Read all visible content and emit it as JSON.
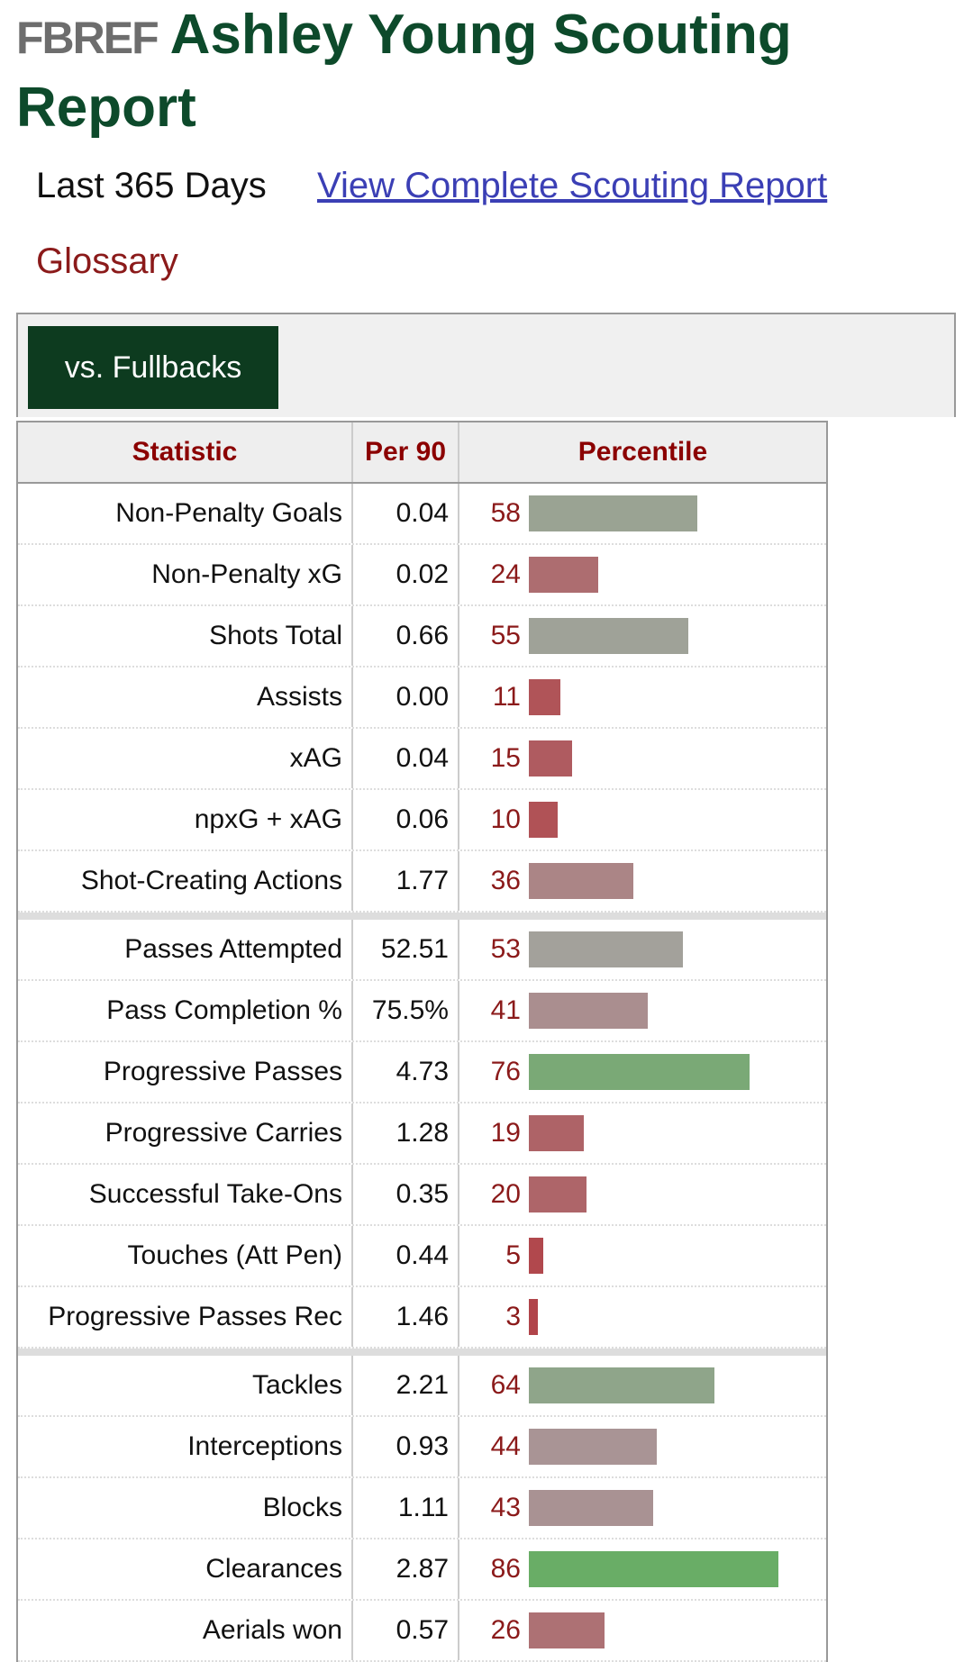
{
  "header": {
    "logo": "FBREF",
    "title": "Ashley Young Scouting Report"
  },
  "period": "Last 365 Days",
  "link": "View Complete Scouting Report",
  "glossary": "Glossary",
  "tab": "vs. Fullbacks",
  "table": {
    "columns": [
      "Statistic",
      "Per 90",
      "Percentile"
    ],
    "groups": [
      [
        {
          "stat": "Non-Penalty Goals",
          "per90": "0.04",
          "percentile": 58
        },
        {
          "stat": "Non-Penalty xG",
          "per90": "0.02",
          "percentile": 24
        },
        {
          "stat": "Shots Total",
          "per90": "0.66",
          "percentile": 55
        },
        {
          "stat": "Assists",
          "per90": "0.00",
          "percentile": 11
        },
        {
          "stat": "xAG",
          "per90": "0.04",
          "percentile": 15
        },
        {
          "stat": "npxG + xAG",
          "per90": "0.06",
          "percentile": 10
        },
        {
          "stat": "Shot-Creating Actions",
          "per90": "1.77",
          "percentile": 36
        }
      ],
      [
        {
          "stat": "Passes Attempted",
          "per90": "52.51",
          "percentile": 53
        },
        {
          "stat": "Pass Completion %",
          "per90": "75.5%",
          "percentile": 41
        },
        {
          "stat": "Progressive Passes",
          "per90": "4.73",
          "percentile": 76
        },
        {
          "stat": "Progressive Carries",
          "per90": "1.28",
          "percentile": 19
        },
        {
          "stat": "Successful Take-Ons",
          "per90": "0.35",
          "percentile": 20
        },
        {
          "stat": "Touches (Att Pen)",
          "per90": "0.44",
          "percentile": 5
        },
        {
          "stat": "Progressive Passes Rec",
          "per90": "1.46",
          "percentile": 3
        }
      ],
      [
        {
          "stat": "Tackles",
          "per90": "2.21",
          "percentile": 64
        },
        {
          "stat": "Interceptions",
          "per90": "0.93",
          "percentile": 44
        },
        {
          "stat": "Blocks",
          "per90": "1.11",
          "percentile": 43
        },
        {
          "stat": "Clearances",
          "per90": "2.87",
          "percentile": 86
        },
        {
          "stat": "Aerials won",
          "per90": "0.57",
          "percentile": 26
        }
      ]
    ]
  }
}
